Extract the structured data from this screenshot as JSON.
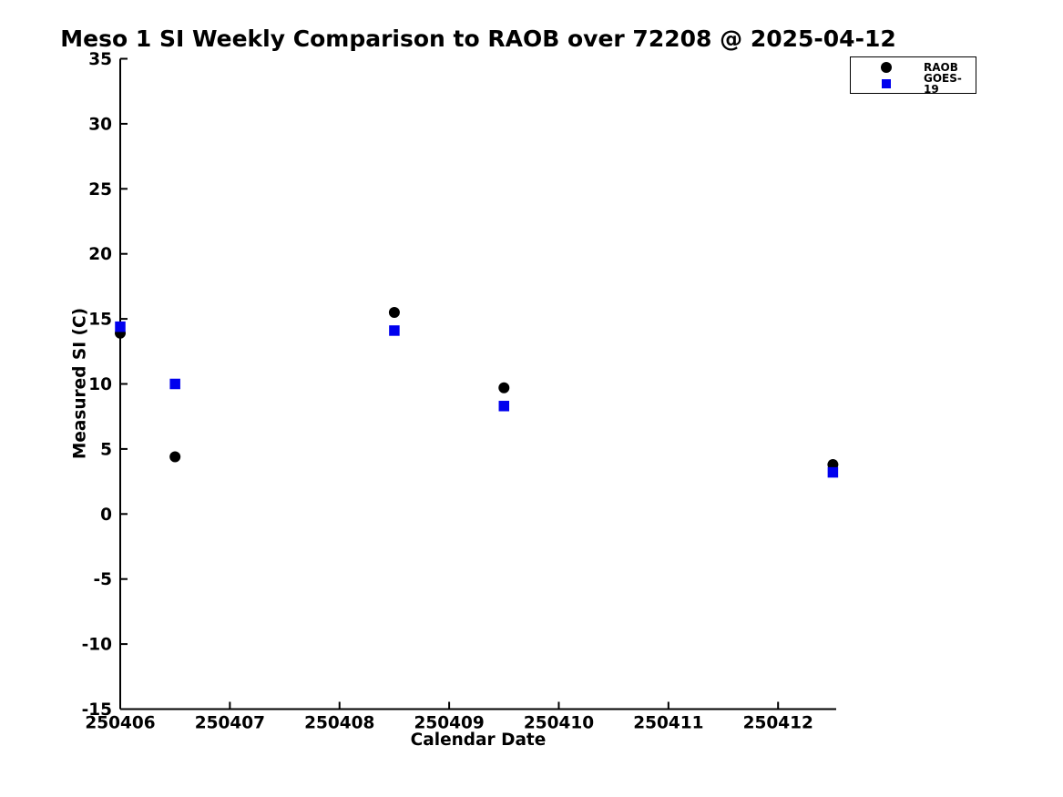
{
  "chart_data": {
    "type": "scatter",
    "title": "Meso 1 SI Weekly Comparison to RAOB over 72208 @ 2025-04-12",
    "xlabel": "Calendar Date",
    "ylabel": "Measured SI (C)",
    "xlim": [
      250406,
      250412.53
    ],
    "ylim": [
      -15,
      35
    ],
    "grid": false,
    "legend_position": "top-right",
    "xticks": {
      "values": [
        250406,
        250407,
        250408,
        250409,
        250410,
        250411,
        250412
      ],
      "labels": [
        "250406",
        "250407",
        "250408",
        "250409",
        "250410",
        "250411",
        "250412"
      ]
    },
    "yticks": {
      "values": [
        -15,
        -10,
        -5,
        0,
        5,
        10,
        15,
        20,
        25,
        30,
        35
      ],
      "labels": [
        "-15",
        "-10",
        "-5",
        "0",
        "5",
        "10",
        "15",
        "20",
        "25",
        "30",
        "35"
      ]
    },
    "x": [
      250406.0,
      250406.5,
      250408.5,
      250409.5,
      250412.5
    ],
    "series": [
      {
        "name": "RAOB",
        "marker": "circle",
        "color": "#000000",
        "values": [
          13.9,
          4.4,
          15.5,
          9.7,
          3.8
        ]
      },
      {
        "name": "GOES-19",
        "marker": "square",
        "color": "#0000ee",
        "values": [
          14.4,
          10.0,
          14.1,
          8.3,
          3.2
        ]
      }
    ],
    "colors": {
      "background": "#ffffff",
      "axis": "#000000"
    }
  }
}
